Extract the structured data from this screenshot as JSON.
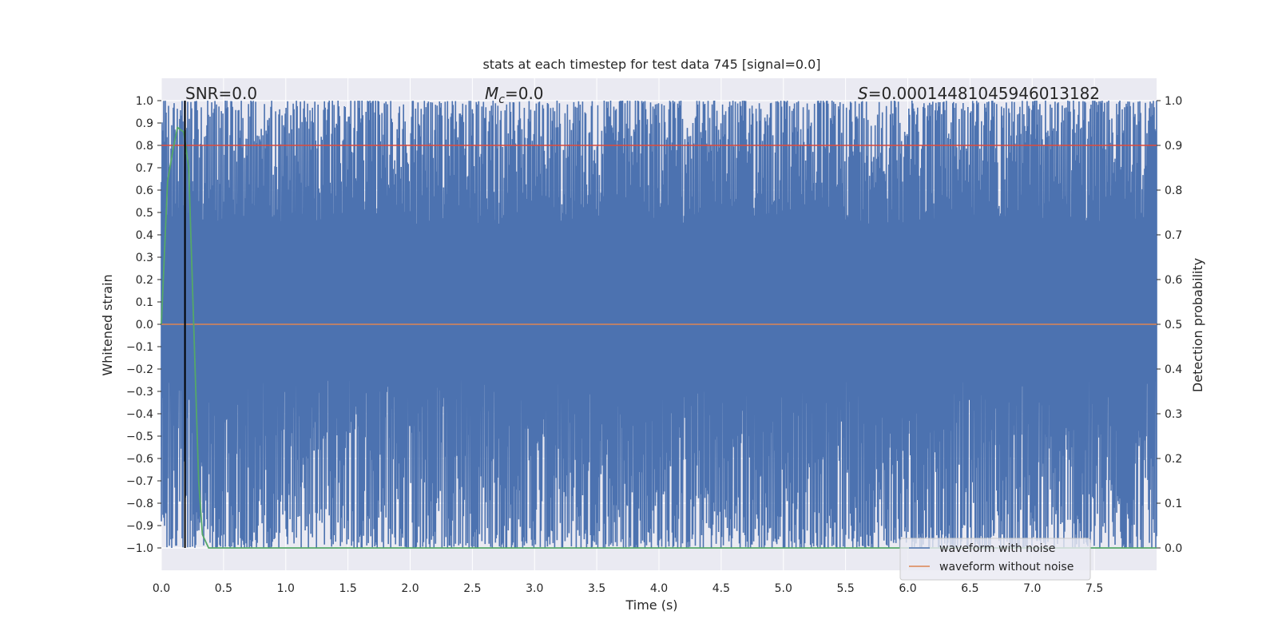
{
  "chart_data": {
    "type": "line",
    "title": "stats at each timestep for test data 745 [signal=0.0]",
    "xlabel": "Time (s)",
    "ylabel": "Whitened strain",
    "y2label": "Detection probability",
    "xlim": [
      0.0,
      8.0
    ],
    "ylim": [
      -1.1,
      1.1
    ],
    "y2lim": [
      -0.05,
      1.05
    ],
    "xticks": [
      "0.0",
      "0.5",
      "1.0",
      "1.5",
      "2.0",
      "2.5",
      "3.0",
      "3.5",
      "4.0",
      "4.5",
      "5.0",
      "5.5",
      "6.0",
      "6.5",
      "7.0",
      "7.5"
    ],
    "yticks": [
      "1.0",
      "0.9",
      "0.8",
      "0.7",
      "0.6",
      "0.5",
      "0.4",
      "0.3",
      "0.2",
      "0.1",
      "0.0",
      "−0.1",
      "−0.2",
      "−0.3",
      "−0.4",
      "−0.5",
      "−0.6",
      "−0.7",
      "−0.8",
      "−0.9",
      "−1.0"
    ],
    "y2ticks": [
      "1.0",
      "0.9",
      "0.8",
      "0.7",
      "0.6",
      "0.5",
      "0.4",
      "0.3",
      "0.2",
      "0.1",
      "0.0"
    ],
    "grid": true,
    "legend_position": "bottom-right",
    "annotations": {
      "snr_label": "SNR=0.0",
      "mc_symbol": "M",
      "mc_sub": "c",
      "mc_value": "=0.0",
      "s_symbol": "S",
      "s_value": "=0.00014481045946013182"
    },
    "series": [
      {
        "name": "waveform with noise",
        "color": "#4c72b0",
        "description_range": [
          -1.0,
          1.0
        ]
      },
      {
        "name": "waveform without noise",
        "color": "#dd8452",
        "x": [
          0.0,
          8.0
        ],
        "y": [
          0.0,
          0.0
        ]
      },
      {
        "color": "#55a868",
        "axis": "right",
        "x": [
          0.0,
          0.05,
          0.1,
          0.13,
          0.18,
          0.22,
          0.26,
          0.3,
          0.33,
          0.38,
          0.5,
          1.0,
          2.0,
          3.0,
          4.0,
          5.0,
          6.0,
          7.0,
          8.0
        ],
        "y": [
          0.5,
          0.82,
          0.9,
          0.94,
          0.93,
          0.85,
          0.5,
          0.15,
          0.03,
          0.0,
          0.0,
          0.0,
          0.0,
          0.0,
          0.0,
          0.0,
          0.0,
          0.0,
          0.0
        ]
      },
      {
        "color": "#dd4a3a",
        "axis": "right",
        "x": [
          0.0,
          8.0
        ],
        "y": [
          0.9,
          0.9
        ]
      }
    ],
    "marker_line_x": 0.19,
    "colors": {
      "plot_bg": "#eaeaf2",
      "grid": "#ffffff",
      "noise_fill": "#4c72b0",
      "marker": "#000000"
    }
  }
}
